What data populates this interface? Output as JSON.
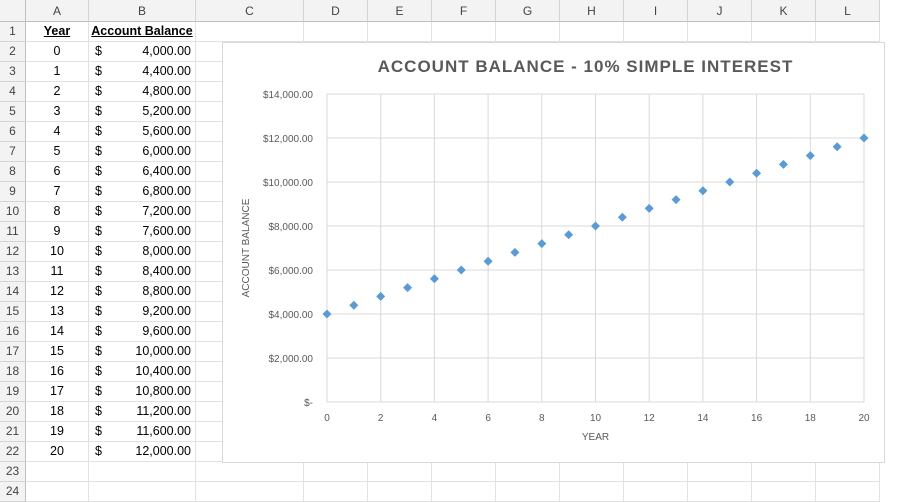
{
  "columns": [
    "A",
    "B",
    "C",
    "D",
    "E",
    "F",
    "G",
    "H",
    "I",
    "J",
    "K",
    "L"
  ],
  "rows": [
    "1",
    "2",
    "3",
    "4",
    "5",
    "6",
    "7",
    "8",
    "9",
    "10",
    "11",
    "12",
    "13",
    "14",
    "15",
    "16",
    "17",
    "18",
    "19",
    "20",
    "21",
    "22",
    "23",
    "24"
  ],
  "table": {
    "header_year": "Year",
    "header_balance": "Account Balance",
    "currency_symbol": "$",
    "entries": [
      {
        "year": "0",
        "balance": "4,000.00"
      },
      {
        "year": "1",
        "balance": "4,400.00"
      },
      {
        "year": "2",
        "balance": "4,800.00"
      },
      {
        "year": "3",
        "balance": "5,200.00"
      },
      {
        "year": "4",
        "balance": "5,600.00"
      },
      {
        "year": "5",
        "balance": "6,000.00"
      },
      {
        "year": "6",
        "balance": "6,400.00"
      },
      {
        "year": "7",
        "balance": "6,800.00"
      },
      {
        "year": "8",
        "balance": "7,200.00"
      },
      {
        "year": "9",
        "balance": "7,600.00"
      },
      {
        "year": "10",
        "balance": "8,000.00"
      },
      {
        "year": "11",
        "balance": "8,400.00"
      },
      {
        "year": "12",
        "balance": "8,800.00"
      },
      {
        "year": "13",
        "balance": "9,200.00"
      },
      {
        "year": "14",
        "balance": "9,600.00"
      },
      {
        "year": "15",
        "balance": "10,000.00"
      },
      {
        "year": "16",
        "balance": "10,400.00"
      },
      {
        "year": "17",
        "balance": "10,800.00"
      },
      {
        "year": "18",
        "balance": "11,200.00"
      },
      {
        "year": "19",
        "balance": "11,600.00"
      },
      {
        "year": "20",
        "balance": "12,000.00"
      }
    ]
  },
  "chart_data": {
    "type": "scatter",
    "title": "ACCOUNT BALANCE - 10% SIMPLE INTEREST",
    "xlabel": "YEAR",
    "ylabel": "ACCOUNT BALANCE",
    "x": [
      0,
      1,
      2,
      3,
      4,
      5,
      6,
      7,
      8,
      9,
      10,
      11,
      12,
      13,
      14,
      15,
      16,
      17,
      18,
      19,
      20
    ],
    "y": [
      4000,
      4400,
      4800,
      5200,
      5600,
      6000,
      6400,
      6800,
      7200,
      7600,
      8000,
      8400,
      8800,
      9200,
      9600,
      10000,
      10400,
      10800,
      11200,
      11600,
      12000
    ],
    "xlim": [
      0,
      20
    ],
    "ylim": [
      0,
      14000
    ],
    "x_ticks": [
      0,
      2,
      4,
      6,
      8,
      10,
      12,
      14,
      16,
      18,
      20
    ],
    "y_ticks": [
      0,
      2000,
      4000,
      6000,
      8000,
      10000,
      12000,
      14000
    ],
    "y_tick_labels": [
      "$-",
      "$2,000.00",
      "$4,000.00",
      "$6,000.00",
      "$8,000.00",
      "$10,000.00",
      "$12,000.00",
      "$14,000.00"
    ],
    "grid": true,
    "marker_color": "#5b9bd5",
    "marker": "diamond"
  }
}
